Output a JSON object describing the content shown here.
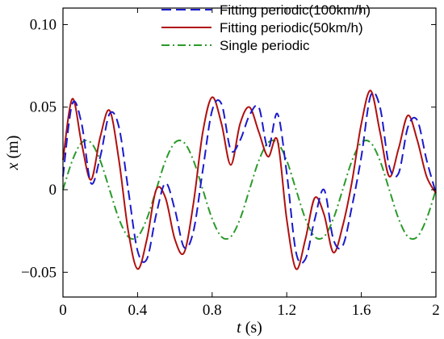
{
  "chart_data": {
    "type": "line",
    "xlabel": {
      "var": "t",
      "unit": " (s)"
    },
    "ylabel": {
      "var": "x",
      "unit": " (m)"
    },
    "xlim": [
      0,
      2
    ],
    "ylim": [
      -0.065,
      0.11
    ],
    "xticks": [
      0,
      0.4,
      0.8,
      1.2,
      1.6,
      2
    ],
    "xtick_labels": [
      "0",
      "0.4",
      "0.8",
      "1.2",
      "1.6",
      "2"
    ],
    "yticks": [
      -0.05,
      0,
      0.05,
      0.1
    ],
    "ytick_labels": [
      "−0.05",
      "0",
      "0.05",
      "0.10"
    ],
    "grid": false,
    "legend_position": "top-right",
    "x": [
      0,
      0.05,
      0.1,
      0.15,
      0.2,
      0.25,
      0.3,
      0.35,
      0.4,
      0.45,
      0.5,
      0.55,
      0.6,
      0.65,
      0.7,
      0.75,
      0.8,
      0.85,
      0.9,
      0.95,
      1.0,
      1.05,
      1.1,
      1.15,
      1.2,
      1.25,
      1.3,
      1.35,
      1.4,
      1.45,
      1.5,
      1.55,
      1.6,
      1.65,
      1.7,
      1.75,
      1.8,
      1.85,
      1.9,
      1.95,
      2.0
    ],
    "series": [
      {
        "name": "Fitting periodic(100km/h)",
        "color": "#1a1acc",
        "dash": "dashed",
        "values": [
          0.008,
          0.052,
          0.04,
          0.004,
          0.02,
          0.046,
          0.038,
          0.0,
          -0.037,
          -0.042,
          -0.015,
          0.004,
          -0.012,
          -0.035,
          -0.025,
          0.012,
          0.048,
          0.052,
          0.024,
          0.03,
          0.045,
          0.05,
          0.025,
          0.046,
          0.01,
          -0.038,
          -0.042,
          -0.018,
          0.0,
          -0.03,
          -0.034,
          -0.01,
          0.02,
          0.057,
          0.05,
          0.014,
          0.01,
          0.038,
          0.042,
          0.018,
          -0.002
        ]
      },
      {
        "name": "Fitting periodic(50km/h)",
        "color": "#b01010",
        "dash": "solid",
        "values": [
          0.018,
          0.055,
          0.028,
          0.006,
          0.032,
          0.048,
          0.018,
          -0.025,
          -0.048,
          -0.03,
          0.0,
          -0.005,
          -0.03,
          -0.038,
          -0.008,
          0.035,
          0.056,
          0.04,
          0.015,
          0.04,
          0.05,
          0.035,
          0.02,
          0.03,
          -0.018,
          -0.048,
          -0.03,
          -0.005,
          -0.015,
          -0.038,
          -0.022,
          0.005,
          0.04,
          0.06,
          0.035,
          0.008,
          0.025,
          0.045,
          0.03,
          0.008,
          -0.002
        ]
      },
      {
        "name": "Single periodic",
        "color": "#2a9a2a",
        "dash": "dashdot",
        "values": [
          0.0,
          0.0176,
          0.0285,
          0.0285,
          0.0176,
          0.0,
          -0.0176,
          -0.0285,
          -0.0285,
          -0.0176,
          0.0,
          0.0176,
          0.0285,
          0.0285,
          0.0176,
          0.0,
          -0.0176,
          -0.0285,
          -0.0285,
          -0.0176,
          0.0,
          0.0176,
          0.0285,
          0.0285,
          0.0176,
          0.0,
          -0.0176,
          -0.0285,
          -0.0285,
          -0.0176,
          0.0,
          0.0176,
          0.0285,
          0.0285,
          0.0176,
          0.0,
          -0.0176,
          -0.0285,
          -0.0285,
          -0.0176,
          0.0
        ]
      }
    ]
  }
}
